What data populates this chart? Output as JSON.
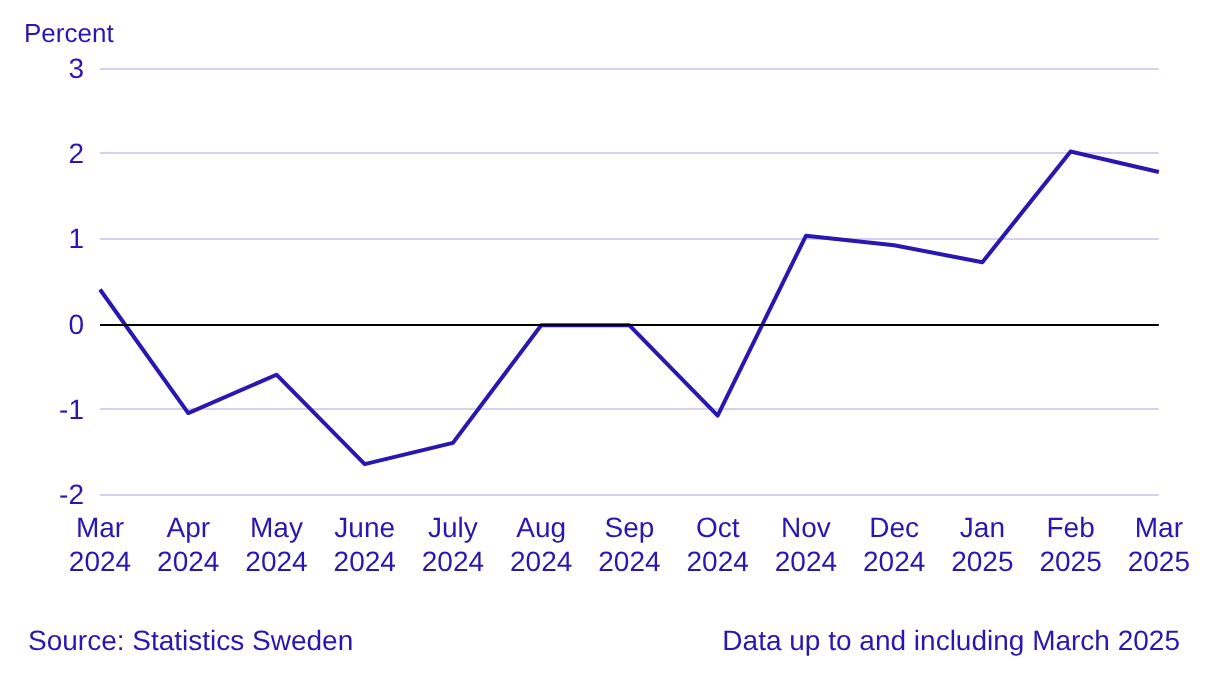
{
  "chart_data": {
    "type": "line",
    "ylabel": "Percent",
    "categories": [
      "Mar\n2024",
      "Apr\n2024",
      "May\n2024",
      "June\n2024",
      "July\n2024",
      "Aug\n2024",
      "Sep\n2024",
      "Oct\n2024",
      "Nov\n2024",
      "Dec\n2024",
      "Jan\n2025",
      "Feb\n2025",
      "Mar\n2025"
    ],
    "series": [
      {
        "color": "#2a17b1",
        "values": [
          0.4,
          -1.05,
          -0.6,
          -1.65,
          -1.4,
          -0.02,
          -0.02,
          -1.08,
          1.03,
          0.92,
          0.72,
          2.02,
          1.78
        ]
      }
    ],
    "ylim": [
      -2,
      3
    ],
    "yticks": [
      -2,
      -1,
      0,
      1,
      2,
      3
    ],
    "grid": "y",
    "marker": "none",
    "line_style": "solid",
    "ref_lines": [
      {
        "axis": "y",
        "value": 0,
        "color": "#000000"
      }
    ],
    "annotations": [
      "Source: Statistics Sweden",
      "Data up to and including March 2025"
    ]
  }
}
